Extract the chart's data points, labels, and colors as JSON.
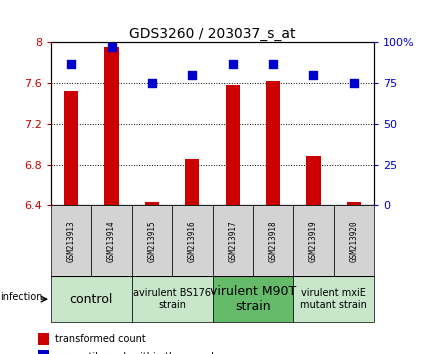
{
  "title": "GDS3260 / 203037_s_at",
  "samples": [
    "GSM213913",
    "GSM213914",
    "GSM213915",
    "GSM213916",
    "GSM213917",
    "GSM213918",
    "GSM213919",
    "GSM213920"
  ],
  "red_values": [
    7.52,
    7.96,
    6.43,
    6.86,
    7.58,
    7.62,
    6.88,
    6.43
  ],
  "blue_values": [
    87,
    97,
    75,
    80,
    87,
    87,
    80,
    75
  ],
  "ylim": [
    6.4,
    8.0
  ],
  "y2lim": [
    0,
    100
  ],
  "yticks": [
    6.4,
    6.8,
    7.2,
    7.6,
    8.0
  ],
  "y2ticks": [
    0,
    25,
    50,
    75,
    100
  ],
  "ytick_labels": [
    "6.4",
    "6.8",
    "7.2",
    "7.6",
    "8"
  ],
  "y2tick_labels": [
    "0",
    "25",
    "50",
    "75",
    "100%"
  ],
  "groups": [
    {
      "label": "control",
      "start": 0,
      "end": 2,
      "color": "#c8e6c9",
      "fontsize": 9
    },
    {
      "label": "avirulent BS176\nstrain",
      "start": 2,
      "end": 4,
      "color": "#c8e6c9",
      "fontsize": 7
    },
    {
      "label": "virulent M90T\nstrain",
      "start": 4,
      "end": 6,
      "color": "#66bb6a",
      "fontsize": 9
    },
    {
      "label": "virulent mxiE\nmutant strain",
      "start": 6,
      "end": 8,
      "color": "#c8e6c9",
      "fontsize": 7
    }
  ],
  "red_color": "#cc0000",
  "blue_color": "#0000cc",
  "bar_width": 0.35,
  "marker_size": 36,
  "sample_area_color": "#d3d3d3",
  "sample_area_color2": "#c8c8c8"
}
